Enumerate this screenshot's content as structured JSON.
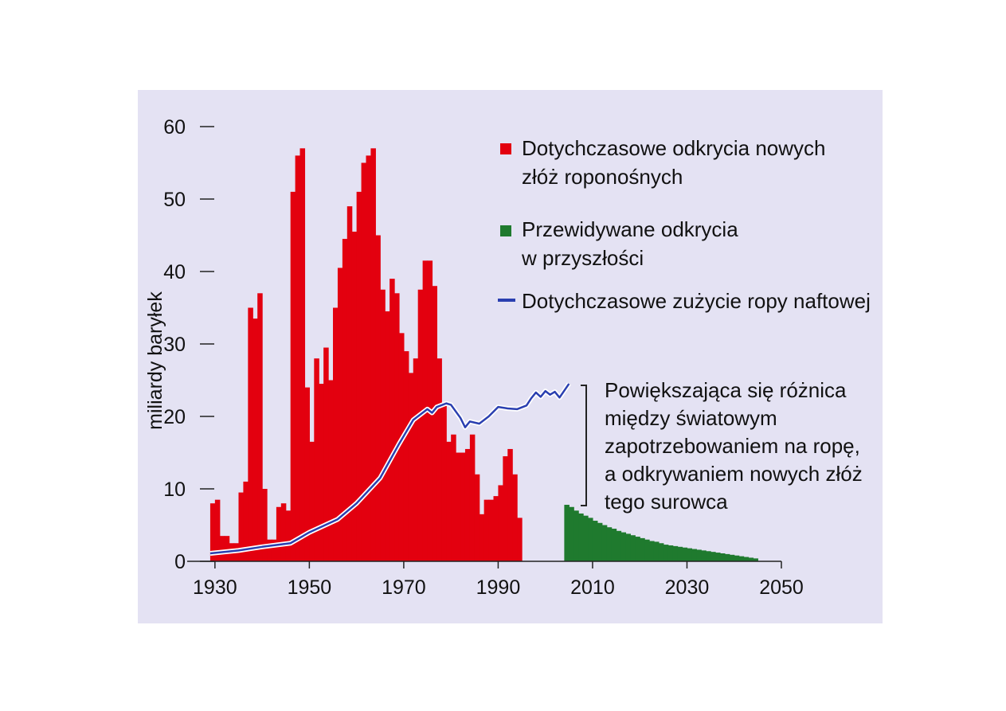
{
  "chart_data": {
    "type": "bar",
    "title": "",
    "ylabel": "miliardy baryłek",
    "xlabel": "",
    "ylim": [
      0,
      60
    ],
    "xlim": [
      1928,
      2050
    ],
    "y_ticks": [
      "0",
      "10",
      "20",
      "30",
      "40",
      "50",
      "60"
    ],
    "x_ticks": [
      "1930",
      "1950",
      "1970",
      "1990",
      "2010",
      "2030",
      "2050"
    ],
    "grid": false,
    "legend_position": "top-right",
    "colors": {
      "discoveries": "#e3000f",
      "predicted": "#1f7a2e",
      "consumption": "#2a3fb0",
      "background": "#e4e2f3"
    },
    "legend": [
      {
        "name": "discoveries",
        "lines": [
          "Dotychczasowe odkrycia nowych",
          "złóż roponośnych"
        ]
      },
      {
        "name": "predicted",
        "lines": [
          "Przewidywane odkrycia",
          "w przyszłości"
        ]
      },
      {
        "name": "consumption",
        "lines": [
          "Dotychczasowe zużycie ropy naftowej"
        ]
      }
    ],
    "annotation": [
      "Powiększająca się różnica",
      "między światowym",
      "zapotrzebowaniem na ropę,",
      "a odkrywaniem nowych złóż",
      "tego surowca"
    ],
    "series": [
      {
        "name": "Dotychczasowe odkrycia nowych złóż roponośnych",
        "type": "bar",
        "start_year": 1929,
        "values": [
          8,
          8.5,
          3.5,
          3.5,
          2.5,
          2.5,
          9.5,
          11,
          35,
          33.5,
          37,
          10,
          3,
          3,
          7.5,
          8,
          7,
          51,
          56,
          57,
          24,
          16.5,
          28,
          24.5,
          29.5,
          25,
          35,
          40.5,
          44.5,
          49,
          45.5,
          51,
          55,
          56,
          57,
          45,
          37.5,
          34.5,
          39,
          37,
          31.5,
          29,
          26,
          28,
          37.5,
          41.5,
          41.5,
          38,
          28,
          21.5,
          16.5,
          17.5,
          15,
          15,
          15.5,
          17.5,
          12,
          6.5,
          8.5,
          8.5,
          9,
          10.5,
          14.5,
          15.5,
          12,
          6
        ]
      },
      {
        "name": "Przewidywane odkrycia w przyszłości",
        "type": "bar",
        "start_year": 2004,
        "values": [
          7.8,
          7.5,
          7.0,
          6.6,
          6.3,
          6.0,
          5.6,
          5.3,
          5.0,
          4.7,
          4.5,
          4.2,
          4.0,
          3.8,
          3.6,
          3.4,
          3.2,
          3.0,
          2.8,
          2.7,
          2.5,
          2.3,
          2.2,
          2.1,
          2.0,
          1.9,
          1.8,
          1.7,
          1.6,
          1.5,
          1.4,
          1.3,
          1.2,
          1.1,
          1.0,
          0.9,
          0.8,
          0.7,
          0.6,
          0.5,
          0.4
        ]
      },
      {
        "name": "Dotychczasowe zużycie ropy naftowej",
        "type": "line",
        "x": [
          1929,
          1935,
          1940,
          1946,
          1950,
          1956,
          1960,
          1965,
          1969,
          1972,
          1975,
          1976,
          1977,
          1979,
          1980,
          1982,
          1983,
          1984,
          1986,
          1988,
          1990,
          1992,
          1994,
          1996,
          1997,
          1998,
          1999,
          2000,
          2001,
          2002,
          2003,
          2005
        ],
        "y": [
          1.1,
          1.5,
          2.0,
          2.5,
          4.0,
          5.8,
          8.0,
          11.5,
          16.2,
          19.5,
          21.0,
          20.5,
          21.3,
          21.8,
          21.6,
          19.8,
          18.5,
          19.3,
          19.0,
          20.0,
          21.3,
          21.1,
          21.0,
          21.5,
          22.5,
          23.3,
          22.7,
          23.5,
          23.0,
          23.4,
          22.6,
          24.5
        ]
      }
    ]
  }
}
